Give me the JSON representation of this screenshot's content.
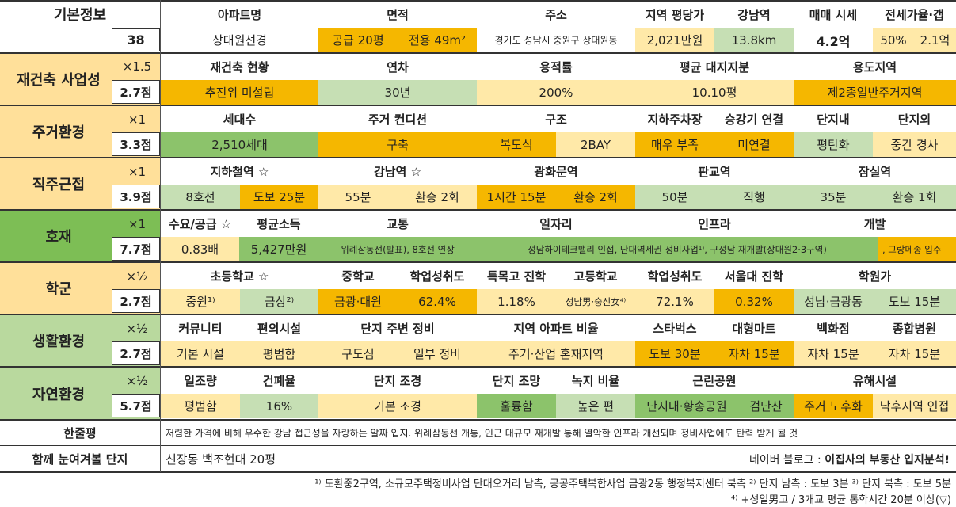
{
  "sections": {
    "basic": "기본정보",
    "basic_score": "38",
    "rebuild": "재건축 사업성",
    "rebuild_mult": "×1.5",
    "rebuild_score": "2.7점",
    "living": "주거환경",
    "living_mult": "×1",
    "living_score": "3.3점",
    "commute": "직주근접",
    "commute_mult": "×1",
    "commute_score": "3.9점",
    "development": "호재",
    "development_mult": "×1",
    "development_score": "7.7점",
    "school": "학군",
    "school_mult": "×½",
    "school_score": "2.7점",
    "lifestyle": "생활환경",
    "lifestyle_mult": "×½",
    "lifestyle_score": "2.7점",
    "nature": "자연환경",
    "nature_mult": "×½",
    "nature_score": "5.7점"
  },
  "basic": {
    "h_name": "아파트명",
    "h_area": "면적",
    "h_addr": "주소",
    "h_pyeong": "지역 평당가",
    "h_gangnam": "강남역",
    "h_price": "매매 시세",
    "h_jeonse": "전세가율·갭",
    "name": "상대원선경",
    "area_supply": "공급 20평",
    "area_exclusive": "전용 49m²",
    "addr": "경기도 성남시 중원구 상대원동",
    "pyeong": "2,021만원",
    "gangnam": "13.8km",
    "price": "4.2억",
    "jeonse_rate": "50%",
    "gap": "2.1억"
  },
  "rebuild": {
    "h_status": "재건축 현황",
    "h_age": "연차",
    "h_far": "용적률",
    "h_land": "평균 대지지분",
    "h_zone": "용도지역",
    "status": "추진위 미설립",
    "age": "30년",
    "far": "200%",
    "land": "10.10평",
    "zone": "제2종일반주거지역"
  },
  "living": {
    "h_households": "세대수",
    "h_condition": "주거 컨디션",
    "h_structure": "구조",
    "h_parking": "지하주차장",
    "h_elevator": "승강기 연결",
    "h_inside": "단지내",
    "h_outside": "단지외",
    "households": "2,510세대",
    "condition": "구축",
    "structure_a": "복도식",
    "structure_b": "2BAY",
    "parking": "매우 부족",
    "elevator": "미연결",
    "inside": "평탄화",
    "outside": "중간 경사"
  },
  "commute": {
    "h_subway": "지하철역 ☆",
    "h_gangnam": "강남역 ☆",
    "h_gwanghwamun": "광화문역",
    "h_pangyo": "판교역",
    "h_jamsil": "잠실역",
    "subway_line": "8호선",
    "subway_walk": "도보 25분",
    "gangnam_time": "55분",
    "gangnam_transfer": "환승 2회",
    "gwanghwamun_time": "1시간 15분",
    "gwanghwamun_transfer": "환승 2회",
    "pangyo_time": "50분",
    "pangyo_transfer": "직행",
    "jamsil_time": "35분",
    "jamsil_transfer": "환승 1회"
  },
  "development": {
    "h_supply": "수요/공급 ☆",
    "h_income": "평균소득",
    "h_traffic": "교통",
    "h_jobs": "일자리",
    "h_infra": "인프라",
    "h_dev": "개발",
    "supply": "0.83배",
    "income": "5,427만원",
    "traffic": "위례삼동선(발표), 8호선 연장",
    "jobs_infra": "성남하이테크밸리 인접, 단대역세권 정비사업¹⁾, 구성남 재개발(상대원2·3구역)",
    "dev": ", 그랑메종 입주"
  },
  "school": {
    "h_elem": "초등학교 ☆",
    "h_middle": "중학교",
    "h_achieve1": "학업성취도",
    "h_special": "특목고 진학",
    "h_high": "고등학교",
    "h_achieve2": "학업성취도",
    "h_snu": "서울대 진학",
    "h_academy": "학원가",
    "elem_a": "중원¹⁾",
    "elem_b": "금상²⁾",
    "middle": "금광·대원",
    "achieve1": "62.4%",
    "special": "1.18%",
    "high": "성남男·숭신女⁴⁾",
    "achieve2": "72.1%",
    "snu": "0.32%",
    "academy_a": "성남·금광동",
    "academy_b": "도보 15분"
  },
  "lifestyle": {
    "h_community": "커뮤니티",
    "h_facility": "편의시설",
    "h_surround": "단지 주변 정비",
    "h_ratio": "지역 아파트 비율",
    "h_starbucks": "스타벅스",
    "h_mart": "대형마트",
    "h_dept": "백화점",
    "h_hospital": "종합병원",
    "community": "기본 시설",
    "facility": "평범함",
    "surround_a": "구도심",
    "surround_b": "일부 정비",
    "ratio": "주거·산업 혼재지역",
    "starbucks": "도보 30분",
    "mart": "자차 15분",
    "dept": "자차 15분",
    "hospital": "자차 15분"
  },
  "nature": {
    "h_sun": "일조량",
    "h_coverage": "건폐율",
    "h_landscape": "단지 조경",
    "h_view": "단지 조망",
    "h_green": "녹지 비율",
    "h_park": "근린공원",
    "h_hazard": "유해시설",
    "sun": "평범함",
    "coverage": "16%",
    "landscape": "기본 조경",
    "view": "훌륭함",
    "green": "높은 편",
    "park_a": "단지내·황송공원",
    "park_b": "검단산",
    "hazard_a": "주거 노후화",
    "hazard_b": "낙후지역 인접"
  },
  "summary": {
    "label": "한줄평",
    "text": "저렴한 가격에 비해 우수한 강남 접근성을 자랑하는 알짜 입지. 위례삼동선 개통, 인근 대규모 재개발 통해 열악한 인프라 개선되며 정비사업에도 탄력 받게 될 것"
  },
  "related": {
    "label": "함께 눈여겨볼 단지",
    "text": "신장동 백조현대 20평",
    "blog_prefix": "네이버 블로그 :",
    "blog_name": "이집사의 부동산 입지분석!"
  },
  "footnotes": {
    "line1": "¹⁾ 도환중2구역, 소규모주택정비사업 단대오거리 남측, 공공주택복합사업 금광2동 행정복지센터 북측 ²⁾ 단지 남측 : 도보 3분 ³⁾ 단지 북측 : 도보 5분",
    "line2": "⁴⁾ +성일男고 / 3개교 평균 통학시간 20분 이상(▽)"
  },
  "colors": {
    "orange": "#F5B700",
    "lightyellow": "#FFE9A8",
    "lightgreen": "#C6DFB4",
    "green": "#8CC36B",
    "section_yellow": "#FFE09A",
    "section_green": "#B9D99E",
    "section_darkgreen": "#7DBE55"
  }
}
